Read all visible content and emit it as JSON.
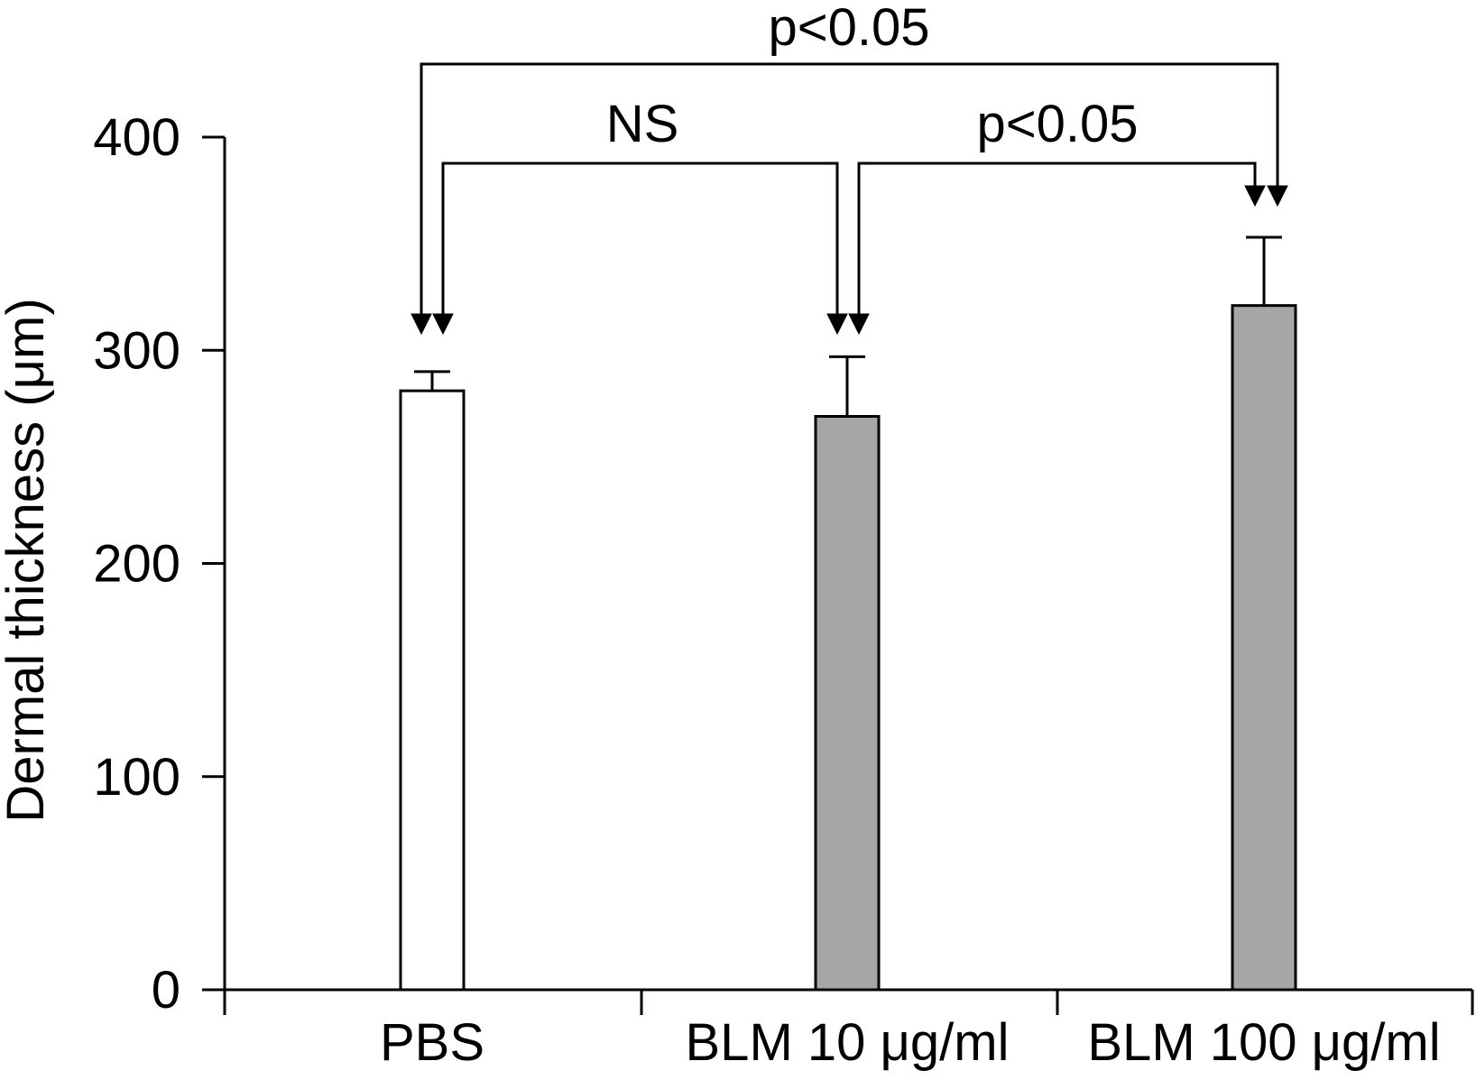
{
  "chart_data": {
    "type": "bar",
    "title": "",
    "xlabel": "",
    "ylabel": "Dermal thickness (μm)",
    "categories": [
      "PBS",
      "BLM 10 μg/ml",
      "BLM 100 μg/ml"
    ],
    "values": [
      281,
      269,
      321
    ],
    "errors": [
      9,
      28,
      32
    ],
    "bar_colors": [
      "#ffffff",
      "#a6a6a6",
      "#a6a6a6"
    ],
    "ylim": [
      0,
      400
    ],
    "yticks": [
      0,
      100,
      200,
      300,
      400
    ],
    "ytick_labels": [
      "0",
      "100",
      "200",
      "300",
      "400"
    ],
    "grid": false,
    "legend": "none",
    "annotations": [
      {
        "label": "p<0.05",
        "from": 0,
        "to": 2,
        "level": 2
      },
      {
        "label": "NS",
        "from": 0,
        "to": 1,
        "level": 1
      },
      {
        "label": "p<0.05",
        "from": 1,
        "to": 2,
        "level": 1
      }
    ]
  }
}
